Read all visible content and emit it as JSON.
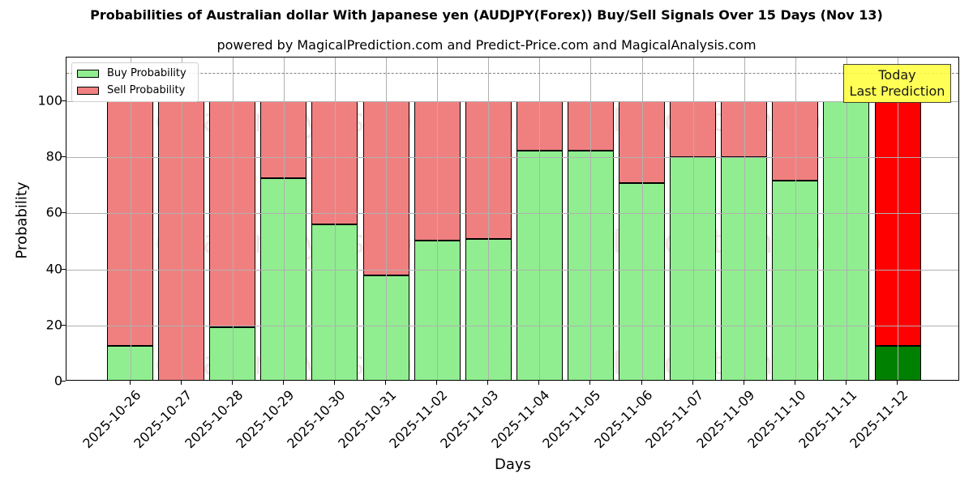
{
  "chart_data": {
    "type": "bar",
    "stacked": true,
    "title": "Probabilities of Australian dollar With Japanese yen (AUDJPY(Forex)) Buy/Sell Signals Over 15 Days (Nov 13)",
    "subtitle": "powered by MagicalPrediction.com and Predict-Price.com and MagicalAnalysis.com",
    "xlabel": "Days",
    "ylabel": "Probability",
    "ylim": [
      0,
      115
    ],
    "yticks": [
      0,
      20,
      40,
      60,
      80,
      100
    ],
    "grid": true,
    "legend_position": "upper left",
    "reference_line": {
      "y": 110,
      "style": "dashed",
      "color": "#808080"
    },
    "categories": [
      "2025-10-26",
      "2025-10-27",
      "2025-10-28",
      "2025-10-29",
      "2025-10-30",
      "2025-10-31",
      "2025-11-02",
      "2025-11-03",
      "2025-11-04",
      "2025-11-05",
      "2025-11-06",
      "2025-11-07",
      "2025-11-09",
      "2025-11-10",
      "2025-11-11",
      "2025-11-12"
    ],
    "series": [
      {
        "name": "Buy Probability",
        "color": "#90ee90",
        "values": [
          12.6,
          0,
          19.5,
          72.4,
          56.2,
          37.8,
          50.2,
          50.9,
          82.4,
          82.4,
          70.7,
          80.2,
          80.2,
          71.8,
          100,
          12.6
        ]
      },
      {
        "name": "Sell Probability",
        "color": "#f08080",
        "values": [
          87.4,
          100,
          80.5,
          27.6,
          43.8,
          62.2,
          49.8,
          49.1,
          17.6,
          17.6,
          29.3,
          19.8,
          19.8,
          28.2,
          0,
          87.4
        ]
      }
    ],
    "highlight_last": {
      "buy_color": "#008000",
      "sell_color": "#ff0000"
    },
    "annotation": {
      "text": "Today\nLast Prediction",
      "line1": "Today",
      "line2": "Last Prediction",
      "bg": "#ffff44"
    },
    "watermarks": [
      "MagicalAnalysis.com",
      "MagicalPrediction.com"
    ]
  }
}
